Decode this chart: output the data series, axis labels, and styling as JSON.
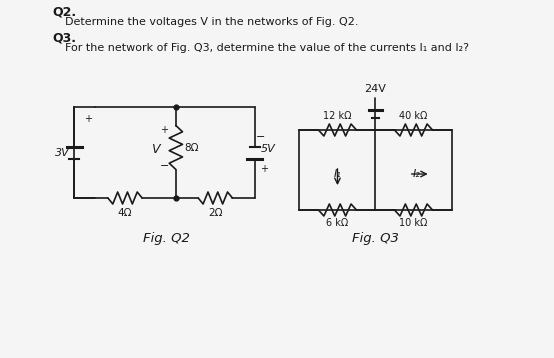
{
  "bg_color": "#f5f5f5",
  "title_q2": "Q2.",
  "text_q2": "Determine the voltages V in the networks of Fig. Q2.",
  "title_q3": "Q3.",
  "text_q3": "For the network of Fig. Q3, determine the value of the currents I₁ and I₂?",
  "fig_q2_label": "Fig. Q2",
  "fig_q3_label": "Fig. Q3",
  "line_color": "#1a1a1a",
  "font_size_bold": 9,
  "font_size_text": 8,
  "font_size_circ": 8
}
